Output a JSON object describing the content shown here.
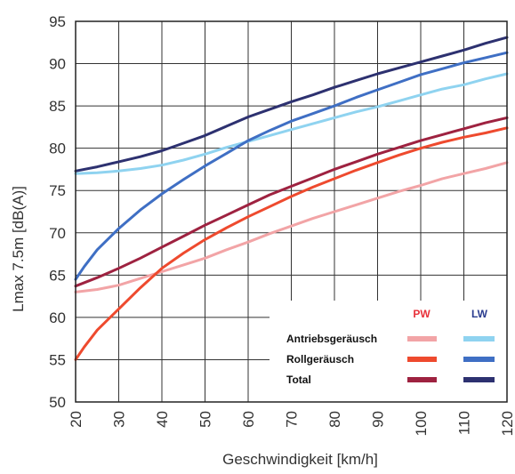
{
  "chart_data": {
    "type": "line",
    "xlabel": "Geschwindigkeit [km/h]",
    "ylabel": "Lmax 7.5m  [dB(A)]",
    "xlim": [
      20,
      120
    ],
    "ylim": [
      50,
      95
    ],
    "x_ticks": [
      "20",
      "30",
      "40",
      "50",
      "60",
      "70",
      "80",
      "90",
      "100",
      "110",
      "120"
    ],
    "y_ticks": [
      "95",
      "90",
      "85",
      "80",
      "75",
      "70",
      "65",
      "60",
      "55",
      "50"
    ],
    "grid": true,
    "legend": {
      "position": "bottom-right",
      "column_headers": {
        "pw": "PW",
        "lw": "LW"
      },
      "column_colors": {
        "pw": "#e8313a",
        "lw": "#2a3c8f"
      },
      "rows": [
        {
          "label": "Antriebsgeräusch",
          "pw_color": "#f2a4a6",
          "lw_color": "#8fd3f0"
        },
        {
          "label": "Rollgeräusch",
          "pw_color": "#ee4a2e",
          "lw_color": "#3f6fc4"
        },
        {
          "label": "Total",
          "pw_color": "#9e2240",
          "lw_color": "#2d3170"
        }
      ]
    },
    "series": [
      {
        "group": "PW",
        "kind": "Antriebsgeräusch",
        "color": "#f2a4a6",
        "x": [
          20,
          25,
          30,
          35,
          40,
          45,
          50,
          55,
          60,
          65,
          70,
          75,
          80,
          85,
          90,
          95,
          100,
          105,
          110,
          115,
          120
        ],
        "y": [
          63.0,
          63.3,
          63.8,
          64.6,
          65.4,
          66.2,
          67.0,
          68.0,
          68.9,
          69.9,
          70.8,
          71.7,
          72.5,
          73.3,
          74.1,
          74.9,
          75.6,
          76.4,
          77.0,
          77.6,
          78.3
        ]
      },
      {
        "group": "PW",
        "kind": "Rollgeräusch",
        "color": "#ee4a2e",
        "x": [
          20,
          22,
          25,
          30,
          35,
          40,
          45,
          50,
          55,
          60,
          65,
          70,
          75,
          80,
          85,
          90,
          95,
          100,
          105,
          110,
          115,
          120
        ],
        "y": [
          55.0,
          56.5,
          58.5,
          61.0,
          63.5,
          65.8,
          67.6,
          69.2,
          70.6,
          71.9,
          73.1,
          74.3,
          75.4,
          76.4,
          77.4,
          78.3,
          79.2,
          80.0,
          80.7,
          81.3,
          81.8,
          82.4
        ]
      },
      {
        "group": "PW",
        "kind": "Total",
        "color": "#9e2240",
        "x": [
          20,
          25,
          30,
          35,
          40,
          45,
          50,
          55,
          60,
          65,
          70,
          75,
          80,
          85,
          90,
          95,
          100,
          105,
          110,
          115,
          120
        ],
        "y": [
          63.7,
          64.7,
          65.8,
          67.0,
          68.3,
          69.6,
          70.9,
          72.1,
          73.3,
          74.5,
          75.5,
          76.5,
          77.5,
          78.4,
          79.3,
          80.1,
          80.9,
          81.6,
          82.3,
          83.0,
          83.6
        ]
      },
      {
        "group": "LW",
        "kind": "Antriebsgeräusch",
        "color": "#8fd3f0",
        "x": [
          20,
          25,
          30,
          35,
          40,
          45,
          50,
          55,
          60,
          65,
          70,
          75,
          80,
          85,
          90,
          95,
          100,
          105,
          110,
          115,
          120
        ],
        "y": [
          77.0,
          77.1,
          77.3,
          77.6,
          78.0,
          78.6,
          79.3,
          80.1,
          80.8,
          81.5,
          82.2,
          82.9,
          83.6,
          84.3,
          84.9,
          85.6,
          86.3,
          87.0,
          87.5,
          88.2,
          88.8
        ]
      },
      {
        "group": "LW",
        "kind": "Rollgeräusch",
        "color": "#3f6fc4",
        "x": [
          20,
          22,
          25,
          30,
          35,
          40,
          45,
          50,
          55,
          60,
          65,
          70,
          75,
          80,
          85,
          90,
          95,
          100,
          105,
          110,
          115,
          120
        ],
        "y": [
          64.5,
          66.0,
          68.0,
          70.5,
          72.7,
          74.6,
          76.3,
          77.9,
          79.4,
          80.9,
          82.1,
          83.2,
          84.1,
          85.0,
          86.0,
          86.9,
          87.8,
          88.7,
          89.4,
          90.1,
          90.7,
          91.3
        ]
      },
      {
        "group": "LW",
        "kind": "Total",
        "color": "#2d3170",
        "x": [
          20,
          25,
          30,
          35,
          40,
          45,
          50,
          55,
          60,
          65,
          70,
          75,
          80,
          85,
          90,
          95,
          100,
          105,
          110,
          115,
          120
        ],
        "y": [
          77.3,
          77.8,
          78.4,
          79.0,
          79.7,
          80.6,
          81.5,
          82.6,
          83.7,
          84.6,
          85.5,
          86.3,
          87.2,
          88.0,
          88.8,
          89.5,
          90.2,
          90.9,
          91.6,
          92.4,
          93.1
        ]
      }
    ]
  }
}
